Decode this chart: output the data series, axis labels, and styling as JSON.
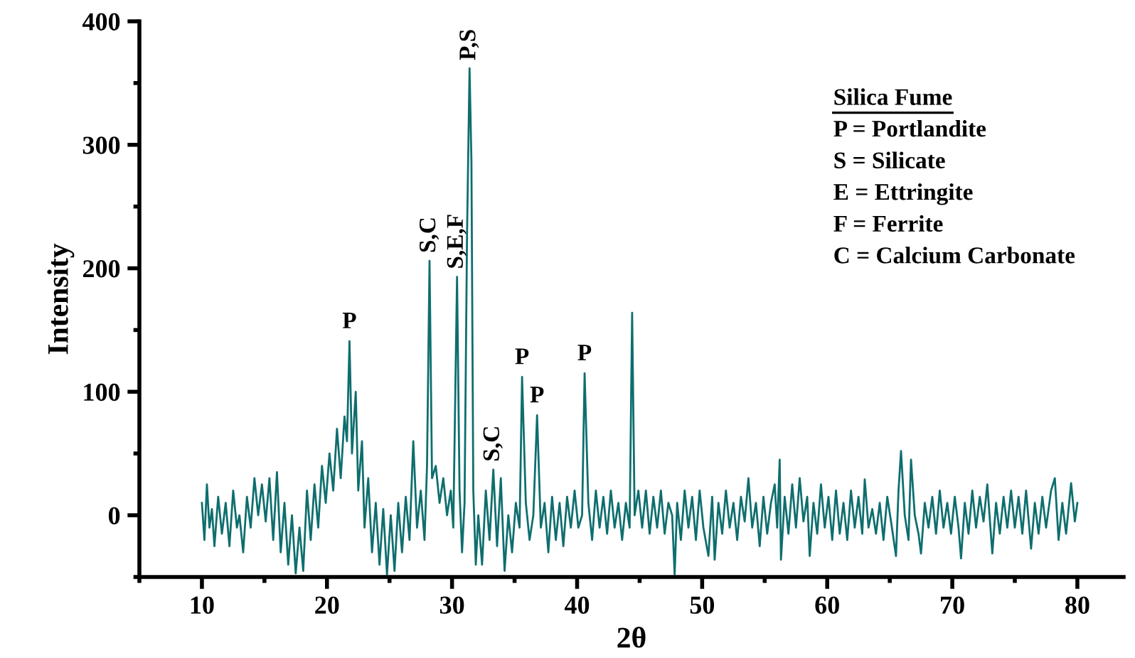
{
  "chart_data": {
    "type": "line",
    "xlabel": "2θ",
    "ylabel": "Intensity",
    "xlim": [
      5,
      83.7
    ],
    "ylim": [
      -50,
      400
    ],
    "xticks": [
      10,
      20,
      30,
      40,
      50,
      60,
      70,
      80
    ],
    "yticks": [
      0,
      100,
      200,
      300,
      400
    ],
    "grid": false,
    "legend": false,
    "marker": "none",
    "line_style": "solid",
    "series": [
      {
        "color": "#0f6e6e",
        "x": [
          10.0,
          10.2,
          10.4,
          10.6,
          10.8,
          11.0,
          11.3,
          11.6,
          11.9,
          12.2,
          12.5,
          12.8,
          13.0,
          13.3,
          13.6,
          13.9,
          14.2,
          14.5,
          14.8,
          15.1,
          15.4,
          15.7,
          16.0,
          16.3,
          16.6,
          16.9,
          17.2,
          17.5,
          17.8,
          18.1,
          18.4,
          18.7,
          19.0,
          19.3,
          19.6,
          19.9,
          20.2,
          20.5,
          20.8,
          21.1,
          21.4,
          21.6,
          21.8,
          22.0,
          22.3,
          22.5,
          22.8,
          23.0,
          23.3,
          23.6,
          23.9,
          24.2,
          24.5,
          24.8,
          25.1,
          25.4,
          25.7,
          26.0,
          26.3,
          26.6,
          26.9,
          27.2,
          27.5,
          27.8,
          28.0,
          28.2,
          28.4,
          28.7,
          29.0,
          29.3,
          29.6,
          29.9,
          30.1,
          30.4,
          30.6,
          30.8,
          31.0,
          31.2,
          31.4,
          31.55,
          31.7,
          31.9,
          32.1,
          32.4,
          32.7,
          33.0,
          33.3,
          33.6,
          33.9,
          34.2,
          34.5,
          34.8,
          35.1,
          35.4,
          35.6,
          35.9,
          36.2,
          36.5,
          36.8,
          37.1,
          37.4,
          37.7,
          38.0,
          38.3,
          38.6,
          38.9,
          39.2,
          39.5,
          39.8,
          40.1,
          40.4,
          40.6,
          40.9,
          41.2,
          41.5,
          41.8,
          42.1,
          42.4,
          42.7,
          43.0,
          43.3,
          43.6,
          43.9,
          44.2,
          44.4,
          44.6,
          44.9,
          45.2,
          45.5,
          45.8,
          46.1,
          46.4,
          46.7,
          47.0,
          47.3,
          47.6,
          47.8,
          48.0,
          48.3,
          48.6,
          48.9,
          49.2,
          49.5,
          49.8,
          50.1,
          50.5,
          50.8,
          51.0,
          51.3,
          51.6,
          51.9,
          52.2,
          52.5,
          52.8,
          53.1,
          53.4,
          53.7,
          54.0,
          54.3,
          54.6,
          54.9,
          55.2,
          55.5,
          55.8,
          56.0,
          56.2,
          56.3,
          56.6,
          56.9,
          57.2,
          57.5,
          57.8,
          58.1,
          58.4,
          58.6,
          58.9,
          59.2,
          59.5,
          59.8,
          60.1,
          60.4,
          60.7,
          61.0,
          61.3,
          61.6,
          61.9,
          62.2,
          62.5,
          62.8,
          63.0,
          63.3,
          63.6,
          63.9,
          64.2,
          64.5,
          64.8,
          65.1,
          65.5,
          65.7,
          65.9,
          66.2,
          66.5,
          66.7,
          67.0,
          67.3,
          67.5,
          67.8,
          68.1,
          68.4,
          68.7,
          69.0,
          69.3,
          69.6,
          69.9,
          70.2,
          70.5,
          70.7,
          71.0,
          71.3,
          71.6,
          71.9,
          72.2,
          72.5,
          72.8,
          73.2,
          73.5,
          73.8,
          74.1,
          74.4,
          74.7,
          75.0,
          75.3,
          75.6,
          75.9,
          76.3,
          76.6,
          76.9,
          77.2,
          77.5,
          77.9,
          78.2,
          78.5,
          78.8,
          79.1,
          79.5,
          79.8,
          80.0
        ],
        "values": [
          10,
          -20,
          25,
          -10,
          5,
          -25,
          15,
          -15,
          10,
          -25,
          20,
          -10,
          0,
          -30,
          15,
          -10,
          30,
          0,
          25,
          -5,
          30,
          -20,
          35,
          -30,
          10,
          -40,
          0,
          -47,
          -10,
          -45,
          20,
          -20,
          25,
          -10,
          40,
          10,
          50,
          20,
          70,
          30,
          80,
          60,
          141,
          50,
          100,
          20,
          60,
          -10,
          30,
          -30,
          10,
          -40,
          5,
          -48,
          0,
          -45,
          10,
          -30,
          15,
          -20,
          60,
          -10,
          20,
          -20,
          40,
          206,
          30,
          40,
          10,
          30,
          0,
          20,
          -10,
          193,
          20,
          -30,
          10,
          228,
          362,
          287,
          20,
          -40,
          0,
          -40,
          20,
          -20,
          37,
          -25,
          30,
          -45,
          0,
          -30,
          10,
          -10,
          112,
          10,
          -20,
          0,
          81,
          -10,
          10,
          -30,
          15,
          -20,
          10,
          -25,
          15,
          -10,
          20,
          -10,
          0,
          115,
          10,
          -20,
          20,
          -10,
          15,
          -15,
          20,
          -10,
          10,
          -20,
          10,
          -10,
          164,
          0,
          20,
          -10,
          20,
          -15,
          15,
          -10,
          20,
          -15,
          10,
          0,
          -48,
          10,
          -20,
          20,
          -10,
          15,
          -20,
          20,
          -10,
          -33,
          15,
          -36,
          10,
          -15,
          20,
          -10,
          10,
          -20,
          15,
          -5,
          30,
          -10,
          10,
          -25,
          15,
          -15,
          10,
          25,
          -10,
          45,
          -36,
          15,
          -15,
          25,
          -10,
          30,
          -5,
          15,
          -33,
          10,
          -15,
          25,
          -10,
          15,
          -20,
          20,
          -15,
          10,
          -20,
          20,
          -10,
          15,
          -15,
          29,
          -10,
          5,
          -15,
          10,
          -20,
          15,
          -5,
          -33,
          20,
          52,
          0,
          -20,
          45,
          0,
          -15,
          -31,
          10,
          -10,
          15,
          -15,
          20,
          -10,
          10,
          -15,
          15,
          -10,
          -35,
          10,
          -15,
          20,
          -10,
          15,
          -5,
          25,
          -31,
          10,
          -15,
          15,
          -10,
          20,
          -10,
          15,
          -15,
          20,
          -27,
          10,
          -15,
          15,
          -10,
          20,
          30,
          -20,
          10,
          -15,
          26,
          -5,
          10
        ]
      }
    ],
    "annotations": [
      "Silica Fume",
      "P = Portlandite",
      "S = Silicate",
      "E = Ettringite",
      "F = Ferrite",
      "C = Calcium Carbonate",
      {
        "text": "P",
        "x": 21.8,
        "y": 141
      },
      {
        "text": "S,C",
        "x": 28.2,
        "y": 206
      },
      {
        "text": "S,E,F",
        "x": 30.4,
        "y": 193
      },
      {
        "text": "P,S",
        "x": 31.4,
        "y": 362
      },
      {
        "text": "S,C",
        "x": 33.3,
        "y": 37
      },
      {
        "text": "P",
        "x": 35.6,
        "y": 112
      },
      {
        "text": "P",
        "x": 36.8,
        "y": 81
      },
      {
        "text": "P",
        "x": 40.6,
        "y": 115
      }
    ]
  }
}
